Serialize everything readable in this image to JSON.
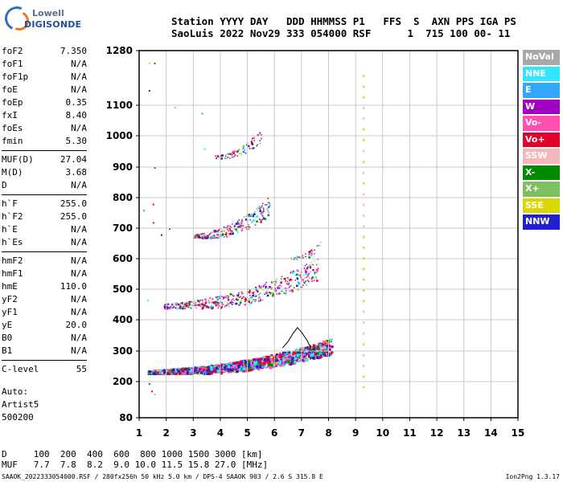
{
  "logo": {
    "line1": "Lowell",
    "line2": "DIGISONDE"
  },
  "header": {
    "line1": "Station YYYY DAY   DDD HHMMSS P1   FFS  S  AXN PPS IGA PS",
    "line2": "SaoLuis 2022 Nov29 333 054000 RSF      1  715 100 00- 11"
  },
  "params": [
    [
      {
        "label": "foF2",
        "value": "7.350"
      },
      {
        "label": "foF1",
        "value": "N/A"
      },
      {
        "label": "foF1p",
        "value": "N/A"
      },
      {
        "label": "foE",
        "value": "N/A"
      },
      {
        "label": "foEp",
        "value": "0.35"
      },
      {
        "label": "fxI",
        "value": "8.40"
      },
      {
        "label": "foEs",
        "value": "N/A"
      },
      {
        "label": "fmin",
        "value": "5.30"
      }
    ],
    [
      {
        "label": "MUF(D)",
        "value": "27.04"
      },
      {
        "label": "M(D)",
        "value": "3.68"
      },
      {
        "label": "D",
        "value": "N/A"
      }
    ],
    [
      {
        "label": "h`F",
        "value": "255.0"
      },
      {
        "label": "h`F2",
        "value": "255.0"
      },
      {
        "label": "h`E",
        "value": "N/A"
      },
      {
        "label": "h`Es",
        "value": "N/A"
      }
    ],
    [
      {
        "label": "hmF2",
        "value": "N/A"
      },
      {
        "label": "hmF1",
        "value": "N/A"
      },
      {
        "label": "hmE",
        "value": "110.0"
      },
      {
        "label": "yF2",
        "value": "N/A"
      },
      {
        "label": "yF1",
        "value": "N/A"
      },
      {
        "label": "yE",
        "value": "20.0"
      },
      {
        "label": "B0",
        "value": "N/A"
      },
      {
        "label": "B1",
        "value": "N/A"
      }
    ],
    [
      {
        "label": "C-level",
        "value": "55"
      }
    ]
  ],
  "auto": {
    "line1": "Auto:",
    "line2": "Artist5",
    "line3": "500200"
  },
  "legend": [
    {
      "label": "NoVal",
      "color": "#a8a8a8"
    },
    {
      "label": "NNE",
      "color": "#33e6ff"
    },
    {
      "label": "E",
      "color": "#33a6ff"
    },
    {
      "label": "W",
      "color": "#a000c0"
    },
    {
      "label": "Vo-",
      "color": "#ff4fb0"
    },
    {
      "label": "Vo+",
      "color": "#e0002a"
    },
    {
      "label": "SSW",
      "color": "#f4b8b8"
    },
    {
      "label": "X-",
      "color": "#008a00"
    },
    {
      "label": "X+",
      "color": "#7cc060"
    },
    {
      "label": "SSE",
      "color": "#d8d800"
    },
    {
      "label": "NNW",
      "color": "#2020d0"
    }
  ],
  "dmuf": {
    "d_line": "D     100  200  400  600  800 1000 1500 3000 [km]",
    "muf_line": "MUF   7.7  7.8  8.2  9.0 10.0 11.5 15.8 27.0 [MHz]"
  },
  "footer": "SAAOK_2022333054000.RSF / 280fx256h 50 kHz 5.0 km / DPS-4 SAAOK 903 / 2.6 S 315.8 E",
  "version": "Ion2Png 1.3.17",
  "chart_data": {
    "type": "scatter",
    "x_ticks": [
      "1",
      "2",
      "3",
      "4",
      "5",
      "6",
      "7",
      "8",
      "9",
      "10",
      "11",
      "12",
      "13",
      "14",
      "15"
    ],
    "y_ticks": [
      "1280",
      "1100",
      "1000",
      "900",
      "800",
      "700",
      "600",
      "500",
      "400",
      "300",
      "200",
      "80"
    ],
    "xlim": [
      1,
      15
    ],
    "ylim": [
      80,
      1280
    ],
    "grid": true,
    "trace_f2": [
      [
        6.3,
        310
      ],
      [
        6.5,
        330
      ],
      [
        6.7,
        358
      ],
      [
        6.85,
        375
      ],
      [
        7.0,
        360
      ],
      [
        7.2,
        335
      ],
      [
        7.35,
        310
      ]
    ],
    "clusters": [
      {
        "x": [
          1.3,
          8.1
        ],
        "y": [
          230,
          340
        ],
        "n": 1400
      },
      {
        "x": [
          1.9,
          7.6
        ],
        "y": [
          440,
          600
        ],
        "n": 520
      },
      {
        "x": [
          3.0,
          5.8
        ],
        "y": [
          670,
          800
        ],
        "n": 260
      },
      {
        "x": [
          3.8,
          5.5
        ],
        "y": [
          930,
          1020
        ],
        "n": 70
      },
      {
        "x": [
          6.6,
          7.7
        ],
        "y": [
          600,
          660
        ],
        "n": 40
      }
    ]
  }
}
